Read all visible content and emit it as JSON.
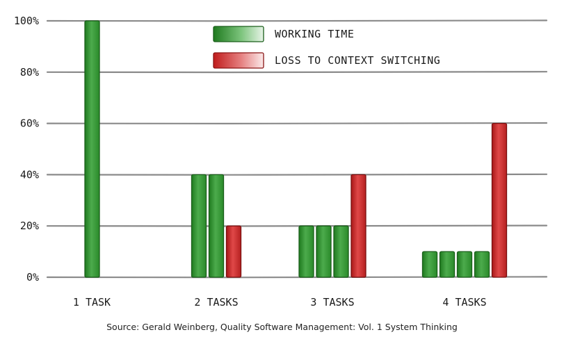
{
  "chart_data": {
    "type": "bar",
    "categories": [
      "1 TASK",
      "2 TASKS",
      "3 TASKS",
      "4 TASKS"
    ],
    "ylim": [
      0,
      100
    ],
    "yticks": [
      0,
      20,
      40,
      60,
      80,
      100
    ],
    "ytick_labels": [
      "0%",
      "20%",
      "40%",
      "60%",
      "80%",
      "100%"
    ],
    "grid": true,
    "legend_position": "top-center",
    "legend": [
      {
        "label": "WORKING TIME",
        "color": "#3a9a3a"
      },
      {
        "label": "LOSS TO CONTEXT SWITCHING",
        "color": "#d23a3a"
      }
    ],
    "groups": [
      {
        "category": "1 TASK",
        "working_time": [
          100
        ],
        "loss_to_context_switching": 0
      },
      {
        "category": "2 TASKS",
        "working_time": [
          40,
          40
        ],
        "loss_to_context_switching": 20
      },
      {
        "category": "3 TASKS",
        "working_time": [
          20,
          20,
          20
        ],
        "loss_to_context_switching": 40
      },
      {
        "category": "4 TASKS",
        "working_time": [
          10,
          10,
          10,
          10
        ],
        "loss_to_context_switching": 60
      }
    ],
    "colors": {
      "working": "#3a9a3a",
      "loss": "#d23a3a",
      "grid": "#8a8a8a"
    }
  },
  "source": "Source: Gerald Weinberg, Quality Software Management: Vol. 1 System Thinking"
}
